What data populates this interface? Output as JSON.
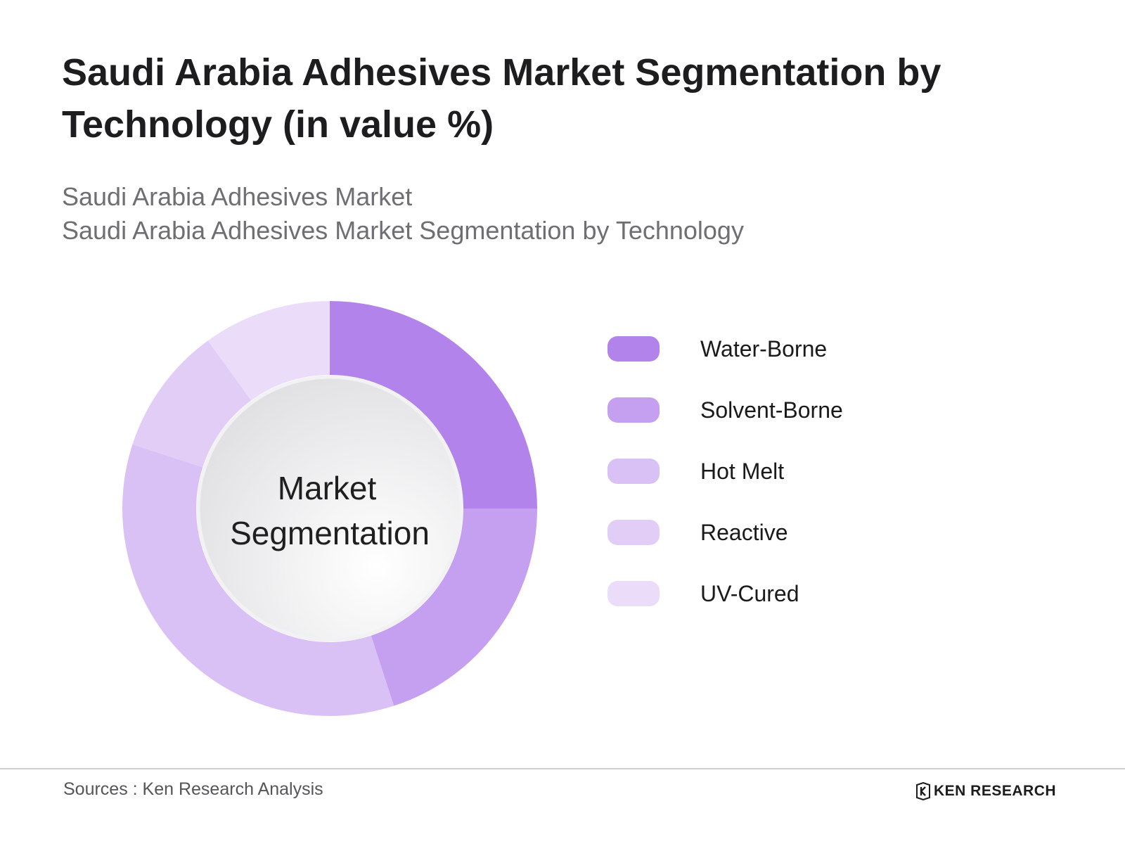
{
  "title": "Saudi Arabia Adhesives Market Segmentation by Technology (in value %)",
  "subtitle": {
    "line1": "Saudi Arabia Adhesives Market",
    "line2": "Saudi Arabia Adhesives Market Segmentation by Technology"
  },
  "chart_data": {
    "type": "pie",
    "variant": "donut",
    "center_label_lines": [
      "Market",
      "Segmentation"
    ],
    "categories": [
      "Water-Borne",
      "Solvent-Borne",
      "Hot Melt",
      "Reactive",
      "UV-Cured"
    ],
    "values": [
      25,
      20,
      35,
      10,
      10
    ],
    "colors": [
      "#b383ec",
      "#c59ff0",
      "#d9c0f5",
      "#e2cdf7",
      "#ebdcfa"
    ],
    "legend_position": "right"
  },
  "footer": {
    "source": "Sources : Ken Research Analysis",
    "brand": "KEN RESEARCH",
    "brand_logo_icon": "ken-research-logo-icon"
  }
}
